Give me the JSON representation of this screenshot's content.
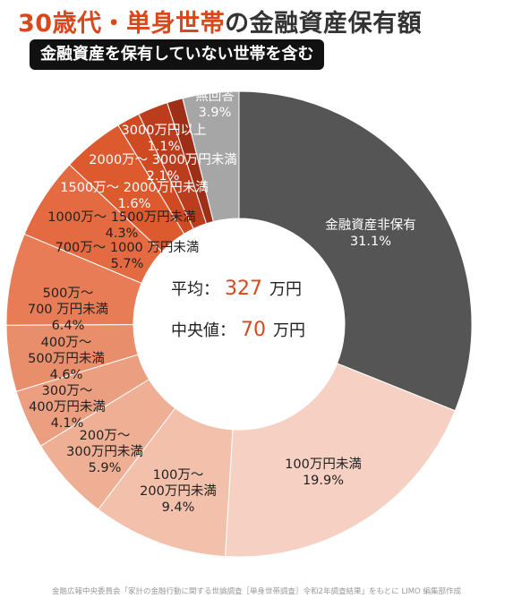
{
  "title": {
    "accent": "30歳代・単身世帯",
    "rest": "の金融資産保有額"
  },
  "subtitle": "金融資産を保有していない世帯を含む",
  "center": {
    "avg_label": "平均：",
    "avg_value": "327",
    "avg_unit": "万円",
    "median_label": "中央値：",
    "median_value": "70",
    "median_unit": "万円"
  },
  "source": "金融広報中央委員会「家計の金融行動に関する世論調査［単身世帯調査］令和2年調査結果」をもとに LIMO 編集部作成",
  "colors": {
    "accent": "#d9481c",
    "dark_slice": "#555555",
    "noanswer_slice": "#a6a6a6"
  },
  "chart_data": {
    "type": "pie",
    "style": "donut",
    "slices": [
      {
        "label_lines": [
          "金融資産非保有"
        ],
        "value_text": "31.1%",
        "value": 31.1,
        "color": "#555555",
        "text_color": "#ffffff"
      },
      {
        "label_lines": [
          "100万円未満"
        ],
        "value_text": "19.9%",
        "value": 19.9,
        "color": "#f6d1c3",
        "text_color": "#222222"
      },
      {
        "label_lines": [
          "100万〜",
          "200万円未満"
        ],
        "value_text": "9.4%",
        "value": 9.4,
        "color": "#f3c0ac",
        "text_color": "#222222"
      },
      {
        "label_lines": [
          "200万〜",
          "300万円未満"
        ],
        "value_text": "5.9%",
        "value": 5.9,
        "color": "#efaf95",
        "text_color": "#222222"
      },
      {
        "label_lines": [
          "300万〜",
          "400万円未満"
        ],
        "value_text": "4.1%",
        "value": 4.1,
        "color": "#ec9f80",
        "text_color": "#222222"
      },
      {
        "label_lines": [
          "400万〜",
          "500万円未満"
        ],
        "value_text": "4.6%",
        "value": 4.6,
        "color": "#e98e6b",
        "text_color": "#222222"
      },
      {
        "label_lines": [
          "500万〜",
          "700 万円未満"
        ],
        "value_text": "6.4%",
        "value": 6.4,
        "color": "#e77c56",
        "text_color": "#222222"
      },
      {
        "label_lines": [
          "700万〜 1000 万円未満"
        ],
        "value_text": "5.7%",
        "value": 5.7,
        "color": "#e46b41",
        "text_color": "#222222"
      },
      {
        "label_lines": [
          "1000万〜 1500万円未満"
        ],
        "value_text": "4.3%",
        "value": 4.3,
        "color": "#dc5a2e",
        "text_color": "#222222"
      },
      {
        "label_lines": [
          "1500万〜 2000万円未満"
        ],
        "value_text": "1.6%",
        "value": 1.6,
        "color": "#cf4a22",
        "text_color": "#ffffff"
      },
      {
        "label_lines": [
          "2000万〜 3000万円未満"
        ],
        "value_text": "2.1%",
        "value": 2.1,
        "color": "#bb3d1e",
        "text_color": "#ffffff"
      },
      {
        "label_lines": [
          "3000万円以上"
        ],
        "value_text": "1.1%",
        "value": 1.1,
        "color": "#9e2e16",
        "text_color": "#ffffff"
      },
      {
        "label_lines": [
          "無回答"
        ],
        "value_text": "3.9%",
        "value": 3.9,
        "color": "#a6a6a6",
        "text_color": "#ffffff"
      }
    ]
  }
}
